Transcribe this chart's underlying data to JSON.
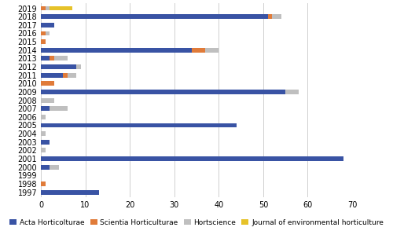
{
  "years": [
    "2019",
    "2018",
    "2017",
    "2016",
    "2015",
    "2014",
    "2013",
    "2012",
    "2011",
    "2010",
    "2009",
    "2008",
    "2007",
    "2006",
    "2005",
    "2004",
    "2003",
    "2002",
    "2001",
    "2000",
    "1999",
    "1998",
    "1997"
  ],
  "acta": [
    0,
    51,
    3,
    0,
    0,
    34,
    2,
    8,
    5,
    0,
    55,
    0,
    2,
    0,
    44,
    0,
    2,
    0,
    68,
    2,
    0,
    0,
    13
  ],
  "scientia": [
    1,
    1,
    0,
    1,
    1,
    3,
    1,
    0,
    1,
    3,
    0,
    0,
    0,
    0,
    0,
    0,
    0,
    0,
    0,
    0,
    0,
    1,
    0
  ],
  "hortscience": [
    1,
    2,
    0,
    1,
    0,
    3,
    3,
    1,
    2,
    0,
    3,
    3,
    4,
    1,
    0,
    1,
    0,
    1,
    0,
    2,
    0,
    0,
    0
  ],
  "jeh": [
    5,
    0,
    0,
    0,
    0,
    0,
    0,
    0,
    0,
    0,
    0,
    0,
    0,
    0,
    0,
    0,
    0,
    0,
    0,
    0,
    0,
    0,
    0
  ],
  "acta_color": "#3953a4",
  "scientia_color": "#e07b39",
  "hortscience_color": "#bfbfbf",
  "jeh_color": "#e6c229",
  "bg_color": "#ffffff",
  "grid_color": "#d0d0d0",
  "bar_height": 0.55,
  "xlim": [
    0,
    70
  ],
  "xticks": [
    0,
    10,
    20,
    30,
    40,
    50,
    60,
    70
  ],
  "legend_labels": [
    "Acta Horticolturae",
    "Scientia Horticulturae",
    "Hortscience",
    "Journal of environmental horticulture"
  ],
  "tick_fontsize": 7,
  "legend_fontsize": 6.5
}
